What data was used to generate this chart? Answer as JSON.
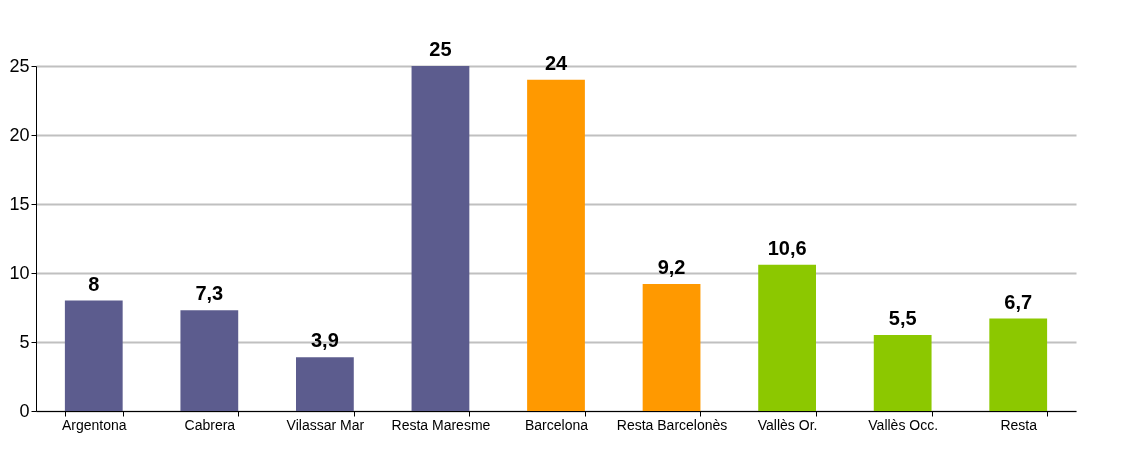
{
  "chart_data": {
    "type": "bar",
    "categories": [
      "Argentona",
      "Cabrera",
      "Vilassar Mar",
      "Resta Maresme",
      "Barcelona",
      "Resta Barcelonès",
      "Vallès Or.",
      "Vallès Occ.",
      "Resta"
    ],
    "values": [
      8,
      7.3,
      3.9,
      25,
      24,
      9.2,
      10.6,
      5.5,
      6.7
    ],
    "colors": [
      "#5c5c8e",
      "#5c5c8e",
      "#5c5c8e",
      "#5c5c8e",
      "#ff9900",
      "#ff9900",
      "#8cc800",
      "#8cc800",
      "#8cc800"
    ],
    "value_labels": [
      "8",
      "7,3",
      "3,9",
      "25",
      "24",
      "9,2",
      "10,6",
      "5,5",
      "6,7"
    ],
    "ylim": [
      0,
      25
    ],
    "yticks": [
      0,
      5,
      10,
      15,
      20,
      25
    ],
    "grid": "y"
  }
}
